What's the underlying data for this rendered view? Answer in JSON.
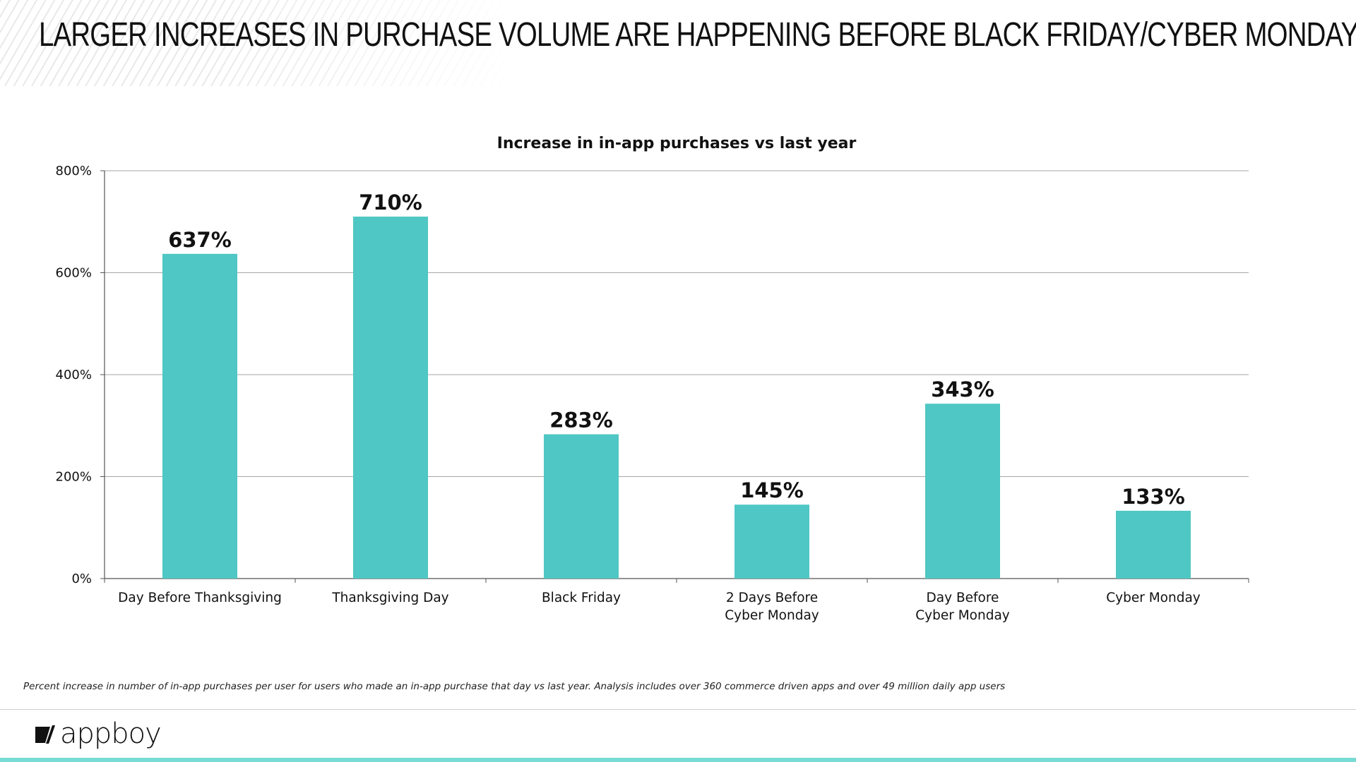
{
  "slide": {
    "title": "LARGER INCREASES IN PURCHASE VOLUME ARE HAPPENING BEFORE BLACK FRIDAY/CYBER MONDAY"
  },
  "chart_data": {
    "type": "bar",
    "title": "Increase in in-app purchases vs last year",
    "xlabel": "",
    "ylabel": "",
    "ylim": [
      0,
      800
    ],
    "yticks": [
      0,
      200,
      400,
      600,
      800
    ],
    "ytick_labels": [
      "0%",
      "200%",
      "400%",
      "600%",
      "800%"
    ],
    "grid": true,
    "categories": [
      [
        "Day Before Thanksgiving"
      ],
      [
        "Thanksgiving Day"
      ],
      [
        "Black Friday"
      ],
      [
        "2 Days Before",
        "Cyber Monday"
      ],
      [
        "Day Before",
        "Cyber Monday"
      ],
      [
        "Cyber Monday"
      ]
    ],
    "values": [
      637,
      710,
      283,
      145,
      343,
      133
    ],
    "value_labels": [
      "637%",
      "710%",
      "283%",
      "145%",
      "343%",
      "133%"
    ],
    "bar_color": "#4fc7c4",
    "grid_color": "#a6a6a6",
    "axis_color": "#555555"
  },
  "footnote": "Percent increase in number of in-app purchases per user for users who made an in-app purchase that day vs last year.  Analysis includes over 360 commerce driven apps and over 49 million daily app users",
  "logo": {
    "text": "appboy",
    "icon": "appboy-logo-icon"
  },
  "colors": {
    "accent_bar": "#79dbd6"
  }
}
